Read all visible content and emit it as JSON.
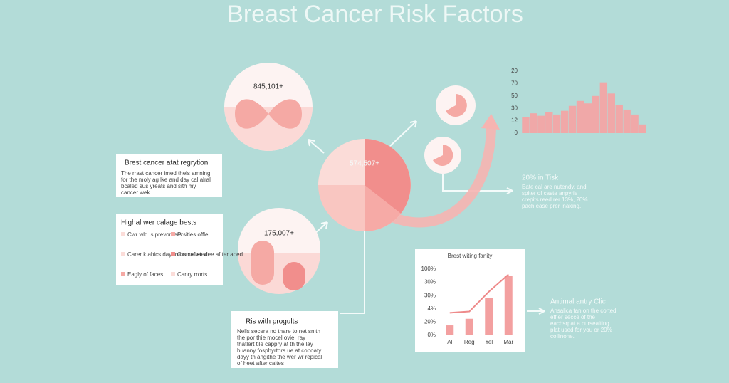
{
  "title": "Breast Cancer Risk Factors",
  "circles": {
    "top": "845,101+",
    "center": "574,507+",
    "left": "175,007+"
  },
  "card_registry": {
    "title": "Brest cancer atat regrytion",
    "lines": [
      "The rrast cancer imed thels amning",
      "for the moly ag lke and day cal alral",
      "bcaled sus yreats and sith my",
      "cancer wek"
    ]
  },
  "card_legend": {
    "title": "Highal wer calage bests",
    "items": [
      "Cwr wld is prevonters",
      "Prsities offle",
      "Carer k ahics dayerons cafiated",
      "Clometter vlee aftter aped",
      "Eagly of faces",
      "Canry rrorts"
    ]
  },
  "card_progults": {
    "title": "Ris with progults",
    "lines": [
      "Nells secera nd thare to net snith",
      "the por thie mocel ovie, ray",
      "thatlert tile cappry at th the lay",
      "buanny fosphyrtors ue at copoaty",
      "dayy th angithe the wer wr repical",
      "of heet after caites"
    ]
  },
  "risk_note": {
    "title": "20% in Tisk",
    "lines": [
      "Eate cal are nutendy, and",
      "spiter of caste anpyrie",
      "crepits reed rer 13%, 20%",
      "pach ease prer lnaking."
    ]
  },
  "clinic_note": {
    "title": "Antimal antry Clic",
    "lines": [
      "Ansalica tan on the corted",
      "effier secce of the",
      "eachsrpat a cursealting",
      "plat used for you or 20%",
      "collinone."
    ]
  },
  "trend_chart": {
    "type": "bar",
    "y_labels": [
      "0",
      "12",
      "30",
      "50",
      "70",
      "20"
    ],
    "ylim": [
      0,
      5
    ],
    "color": "#f0a8a8",
    "values": [
      1.3,
      1.6,
      1.4,
      1.7,
      1.5,
      1.8,
      2.2,
      2.6,
      2.4,
      3.0,
      4.1,
      3.2,
      2.3,
      1.9,
      1.5,
      0.7
    ]
  },
  "rate_chart": {
    "type": "bar",
    "title": "Brest witing fanity",
    "categories": [
      "Al",
      "Reg",
      "Yel",
      "Mar"
    ],
    "y_labels": [
      "0%",
      "20%",
      "4%",
      "30%",
      "30%",
      "100%"
    ],
    "ylim": [
      0,
      5
    ],
    "color": "#f3a0a0",
    "values": [
      0.75,
      1.25,
      2.8,
      4.5
    ],
    "line_color": "#ee8a8a",
    "line_values": [
      1.7,
      1.8,
      3.3,
      4.6
    ]
  }
}
